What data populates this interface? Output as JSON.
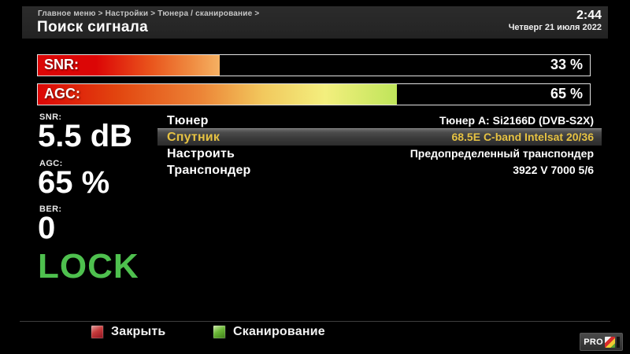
{
  "header": {
    "breadcrumb": "Главное меню > Настройки > Тюнера / сканирование >",
    "title": "Поиск сигнала",
    "time": "2:44",
    "date": "Четверг 21 июля 2022"
  },
  "signal_bars": [
    {
      "label": "SNR:",
      "value": "33 %",
      "percent": 33
    },
    {
      "label": "AGC:",
      "value": "65 %",
      "percent": 65
    }
  ],
  "status_panel": {
    "snr": {
      "label": "SNR:",
      "value": "5.5 dB"
    },
    "agc": {
      "label": "AGC:",
      "value": "65 %"
    },
    "ber": {
      "label": "BER:",
      "value": "0"
    },
    "lock": "LOCK"
  },
  "settings": {
    "rows": [
      {
        "label": "Тюнер",
        "value": "Тюнер A: Si2166D (DVB-S2X)",
        "selected": false
      },
      {
        "label": "Спутник",
        "value": "68.5E C-band Intelsat 20/36",
        "selected": true
      },
      {
        "label": "Настроить",
        "value": "Предопределенный транспондер",
        "selected": false
      },
      {
        "label": "Транспондер",
        "value": "3922 V 7000 5/6",
        "selected": false
      }
    ]
  },
  "footer": {
    "keys": [
      {
        "color": "#c63b3b",
        "label": "Закрыть"
      },
      {
        "color": "#6cb838",
        "label": "Сканирование"
      }
    ]
  },
  "logo": {
    "text": "PRO"
  },
  "colors": {
    "lock_green": "#4ec04e",
    "selected_yellow": "#e6c243",
    "header_bg": "#272727",
    "bar_red": "#dc0606",
    "bar_orange": "#f5b163",
    "bar_green": "#bfe55a"
  }
}
